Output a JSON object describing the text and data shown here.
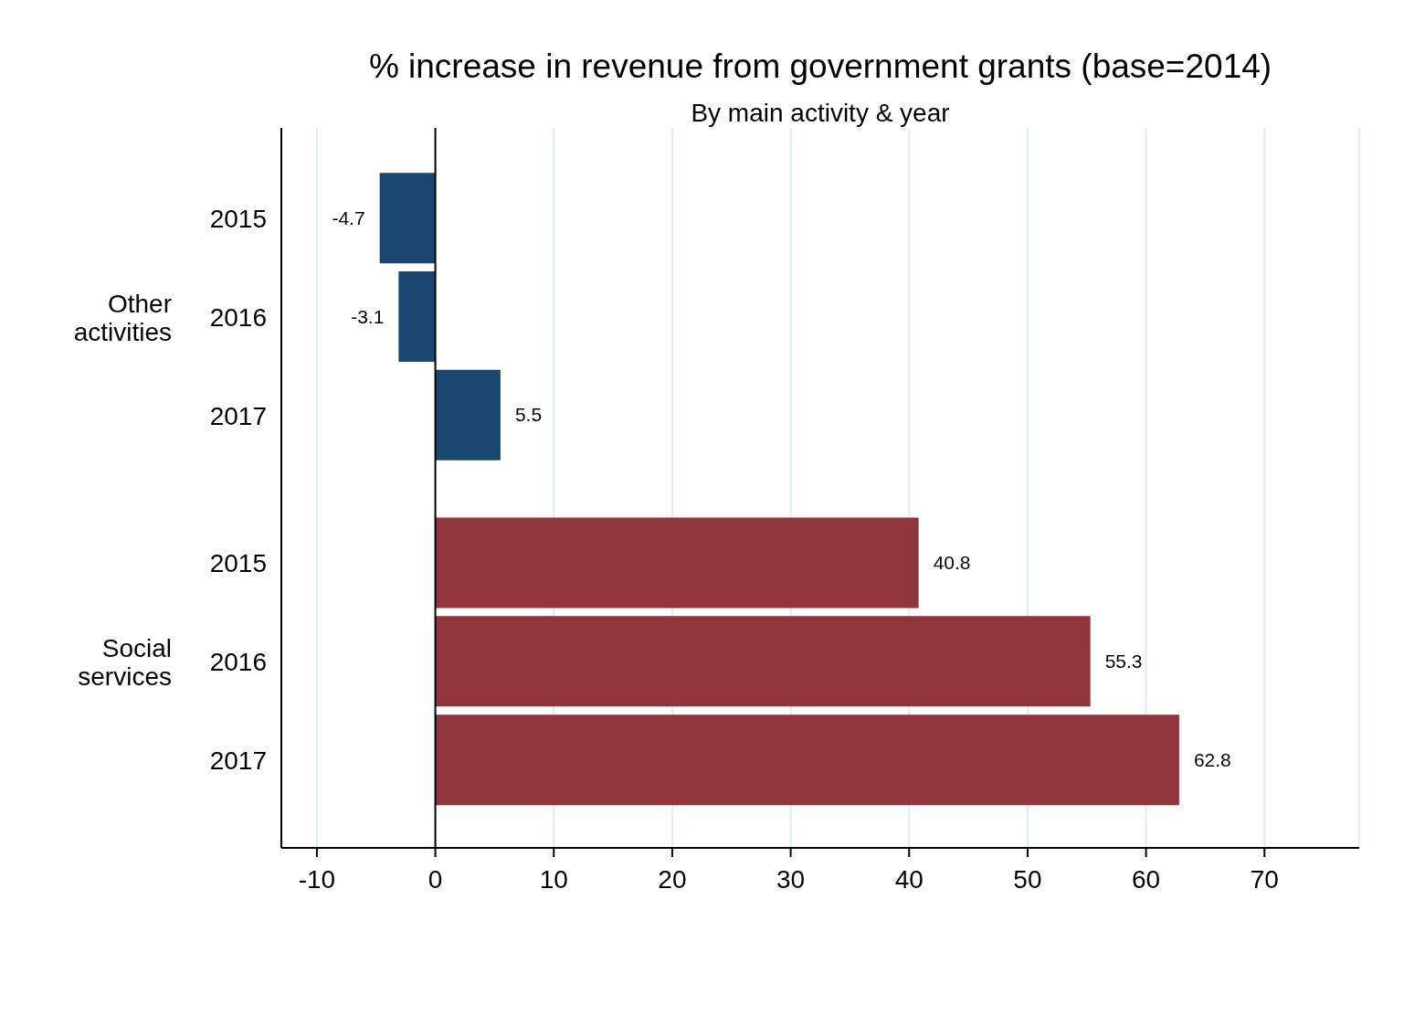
{
  "chart_data": {
    "type": "bar",
    "orientation": "horizontal",
    "title": "% increase in revenue from government grants (base=2014)",
    "subtitle": "By main activity & year",
    "categories": [
      "2015",
      "2016",
      "2017",
      "2015",
      "2016",
      "2017"
    ],
    "values": [
      -4.7,
      -3.1,
      5.5,
      40.8,
      55.3,
      62.8
    ],
    "colors": [
      "#1a476f",
      "#1a476f",
      "#1a476f",
      "#90353b",
      "#90353b",
      "#90353b"
    ],
    "annotations": [
      "Other activities",
      "Social services"
    ],
    "data_labels": true,
    "xlim": [
      -13,
      78
    ],
    "xticks": [
      -10,
      0,
      10,
      20,
      30,
      40,
      50,
      60,
      70
    ],
    "grid": "x",
    "ref_lines": [
      {
        "axis": "x",
        "value": 0,
        "color": "#000000"
      }
    ]
  }
}
